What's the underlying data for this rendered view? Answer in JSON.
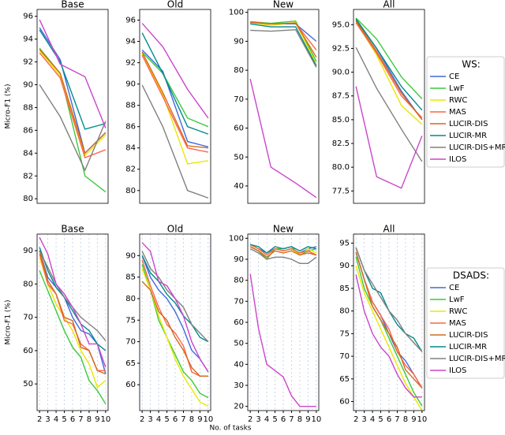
{
  "chart_data": [
    {
      "type": "line",
      "legend_title": "WS:",
      "ylabel": "Micro-F1 (%)",
      "x": [
        2,
        4.5,
        7.5,
        10
      ],
      "xlim": [
        1.7,
        10.3
      ],
      "series": [
        {
          "name": "CE",
          "color": "#4169e1"
        },
        {
          "name": "LwF",
          "color": "#3cc83c"
        },
        {
          "name": "RWC",
          "color": "#e8e800"
        },
        {
          "name": "MAS",
          "color": "#ff6347"
        },
        {
          "name": "LUCIR-DIS",
          "color": "#d2691e"
        },
        {
          "name": "LUCIR-MR",
          "color": "#008b8b"
        },
        {
          "name": "LUCIR-DIS+MR",
          "color": "#808080"
        },
        {
          "name": "ILOS",
          "color": "#cc44cc"
        }
      ],
      "panels": [
        {
          "title": "Base",
          "ylim": [
            79.6,
            96.6
          ],
          "yticks": [
            80,
            82,
            84,
            86,
            88,
            90,
            92,
            94,
            96
          ],
          "values": [
            [
              95.0,
              92.2,
              84.0,
              85.8
            ],
            [
              93.2,
              91.0,
              82.0,
              80.6
            ],
            [
              93.0,
              90.8,
              83.8,
              85.6
            ],
            [
              92.8,
              90.6,
              83.6,
              84.3
            ],
            [
              93.1,
              91.0,
              84.0,
              85.8
            ],
            [
              94.8,
              92.0,
              86.1,
              86.6
            ],
            [
              90.0,
              87.2,
              82.5,
              86.8
            ],
            [
              95.7,
              91.8,
              90.7,
              86.2
            ]
          ]
        },
        {
          "title": "Old",
          "ylim": [
            78.8,
            97
          ],
          "yticks": [
            80,
            82,
            84,
            86,
            88,
            90,
            92,
            94,
            96
          ],
          "values": [
            [
              93.2,
              91.2,
              84.6,
              84.1
            ],
            [
              93.0,
              91.0,
              86.8,
              86.0
            ],
            [
              92.8,
              89.0,
              82.5,
              82.8
            ],
            [
              92.7,
              88.8,
              84.0,
              83.6
            ],
            [
              93.0,
              89.2,
              84.2,
              84.0
            ],
            [
              94.8,
              91.0,
              86.0,
              85.3
            ],
            [
              89.9,
              86.0,
              80.0,
              79.3
            ],
            [
              95.7,
              93.5,
              89.5,
              86.8
            ]
          ]
        },
        {
          "title": "New",
          "ylim": [
            34,
            101
          ],
          "yticks": [
            40,
            50,
            60,
            70,
            80,
            90,
            100
          ],
          "values": [
            [
              96.5,
              96.0,
              96.0,
              90.0
            ],
            [
              96.8,
              96.2,
              97.0,
              83.0
            ],
            [
              96.5,
              95.5,
              96.5,
              82.0
            ],
            [
              96.7,
              96.0,
              96.2,
              87.0
            ],
            [
              96.5,
              96.0,
              96.3,
              84.5
            ],
            [
              96.0,
              95.0,
              95.0,
              81.5
            ],
            [
              93.8,
              93.5,
              94.0,
              81.0
            ],
            [
              77.0,
              46.5,
              41.0,
              36.0
            ]
          ]
        },
        {
          "title": "All",
          "ylim": [
            76.2,
            96.6
          ],
          "yticks": [
            {
              "value": 77.5,
              "label": "77.5"
            },
            {
              "value": 80,
              "label": "80.0"
            },
            {
              "value": 82.5,
              "label": "82.5"
            },
            {
              "value": 85,
              "label": "85.0"
            },
            {
              "value": 87.5,
              "label": "87.5"
            },
            {
              "value": 90,
              "label": "90.0"
            },
            {
              "value": 92.5,
              "label": "92.5"
            },
            {
              "value": 95,
              "label": "95.0"
            }
          ],
          "values": [
            [
              95.5,
              92.5,
              88.0,
              85.0
            ],
            [
              95.7,
              93.5,
              89.5,
              87.2
            ],
            [
              95.3,
              91.8,
              86.5,
              84.5
            ],
            [
              95.2,
              92.0,
              87.5,
              85.2
            ],
            [
              95.4,
              92.2,
              87.8,
              85.0
            ],
            [
              95.6,
              92.5,
              88.5,
              86.0
            ],
            [
              92.6,
              88.3,
              84.0,
              80.6
            ],
            [
              88.5,
              79.0,
              77.8,
              83.3
            ]
          ]
        }
      ]
    },
    {
      "type": "line",
      "legend_title": "DSADS:",
      "ylabel": "Micro-F1 (%)",
      "xlabel": "No. of tasks",
      "x": [
        2,
        3,
        4,
        5,
        6,
        7,
        8,
        9,
        10
      ],
      "xlim": [
        1.7,
        10.3
      ],
      "xticks": [
        2,
        3,
        4,
        5,
        6,
        7,
        8,
        9,
        10
      ],
      "xgrid": true,
      "series": [
        {
          "name": "CE",
          "color": "#4169e1"
        },
        {
          "name": "LwF",
          "color": "#3cc83c"
        },
        {
          "name": "RWC",
          "color": "#e8e800"
        },
        {
          "name": "MAS",
          "color": "#ff6347"
        },
        {
          "name": "LUCIR-DIS",
          "color": "#d2691e"
        },
        {
          "name": "LUCIR-MR",
          "color": "#008b8b"
        },
        {
          "name": "LUCIR-DIS+MR",
          "color": "#808080"
        },
        {
          "name": "ILOS",
          "color": "#cc44cc"
        }
      ],
      "panels": [
        {
          "title": "Base",
          "ylim": [
            42,
            95
          ],
          "yticks": [
            50,
            60,
            70,
            80,
            90
          ],
          "values": [
            [
              90,
              82,
              79,
              76,
              70,
              66,
              65,
              62,
              53
            ],
            [
              84,
              78,
              72,
              66,
              61,
              58,
              51,
              48,
              44
            ],
            [
              88,
              80,
              74,
              70,
              66,
              60,
              56,
              49,
              51
            ],
            [
              89,
              80,
              77,
              69,
              68,
              62,
              60,
              54,
              54
            ],
            [
              90,
              81,
              77,
              70,
              69,
              61,
              60,
              54,
              53
            ],
            [
              91,
              84,
              79,
              76,
              72,
              68,
              66,
              62,
              60
            ],
            [
              90,
              85,
              80,
              76,
              73,
              70,
              68,
              66,
              63
            ],
            [
              94,
              89,
              80,
              77,
              73,
              68,
              62,
              62,
              55
            ]
          ]
        },
        {
          "title": "Old",
          "ylim": [
            54,
            95
          ],
          "yticks": [
            60,
            65,
            70,
            75,
            80,
            85,
            90
          ],
          "values": [
            [
              90,
              85,
              82,
              80,
              77,
              73,
              68,
              66,
              63
            ],
            [
              88,
              82,
              75,
              71,
              67,
              63,
              61,
              58,
              57
            ],
            [
              87,
              82,
              76,
              71,
              66,
              62,
              59,
              56,
              55
            ],
            [
              89,
              83,
              78,
              74,
              72,
              69,
              63,
              62,
              62
            ],
            [
              84,
              82,
              77,
              75,
              71,
              68,
              64,
              62,
              62
            ],
            [
              90,
              86,
              84,
              81,
              79,
              76,
              74,
              71,
              70
            ],
            [
              91,
              87,
              85,
              82,
              80,
              78,
              74,
              72,
              70
            ],
            [
              93,
              91,
              84,
              83,
              80,
              76,
              70,
              66,
              63
            ]
          ]
        },
        {
          "title": "New",
          "ylim": [
            18,
            102
          ],
          "yticks": [
            20,
            30,
            40,
            50,
            60,
            70,
            80,
            90,
            100
          ],
          "values": [
            [
              97,
              95,
              93,
              95,
              94,
              95,
              93,
              95,
              96
            ],
            [
              96,
              94,
              90,
              95,
              95,
              96,
              92,
              94,
              95
            ],
            [
              97,
              95,
              92,
              95,
              94,
              95,
              92,
              95,
              93
            ],
            [
              97,
              95,
              92,
              95,
              94,
              95,
              93,
              94,
              92
            ],
            [
              96,
              94,
              91,
              94,
              93,
              94,
              92,
              93,
              92
            ],
            [
              97,
              96,
              93,
              96,
              95,
              96,
              94,
              96,
              95
            ],
            [
              95,
              93,
              90,
              91,
              91,
              90,
              88,
              88,
              91
            ],
            [
              83,
              57,
              40,
              37,
              34,
              25,
              20,
              20,
              20
            ]
          ]
        },
        {
          "title": "All",
          "ylim": [
            58,
            97
          ],
          "yticks": [
            60,
            65,
            70,
            75,
            80,
            85,
            90,
            95
          ],
          "values": [
            [
              93,
              87,
              82,
              79,
              75,
              71,
              69,
              66,
              63
            ],
            [
              92,
              85,
              81,
              78,
              74,
              70,
              66,
              62,
              59
            ],
            [
              90,
              84,
              80,
              76,
              72,
              68,
              64,
              61,
              58
            ],
            [
              93,
              87,
              82,
              79,
              76,
              71,
              68,
              66,
              63
            ],
            [
              93,
              87,
              81,
              78,
              75,
              72,
              67,
              65,
              63
            ],
            [
              94,
              89,
              85,
              84,
              80,
              77,
              75,
              74,
              71
            ],
            [
              94,
              89,
              86,
              83,
              80,
              78,
              75,
              73,
              71
            ],
            [
              88,
              80,
              75,
              72,
              70,
              66,
              63,
              61,
              61
            ]
          ]
        }
      ]
    }
  ]
}
